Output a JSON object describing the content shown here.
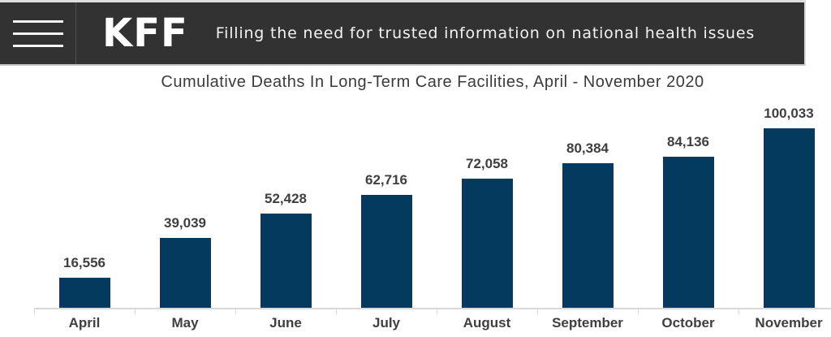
{
  "header": {
    "logo_text": "KFF",
    "tagline": "Filling the need for trusted information on national health issues",
    "background_color": "#323232",
    "text_color": "#F2F2F2"
  },
  "chart_data": {
    "type": "bar",
    "title": "Cumulative Deaths In Long-Term Care Facilities, April - November 2020",
    "categories": [
      "April",
      "May",
      "June",
      "July",
      "August",
      "September",
      "October",
      "November"
    ],
    "values": [
      16556,
      39039,
      52428,
      62716,
      72058,
      80384,
      84136,
      100033
    ],
    "value_labels": [
      "16,556",
      "39,039",
      "52,428",
      "62,716",
      "72,058",
      "80,384",
      "84,136",
      "100,033"
    ],
    "xlabel": "",
    "ylabel": "",
    "ylim": [
      0,
      105000
    ],
    "grid": false,
    "legend": false,
    "bar_color": "#053A5F",
    "label_color": "#3F3F3F",
    "axis_color": "#D8D8D8"
  }
}
